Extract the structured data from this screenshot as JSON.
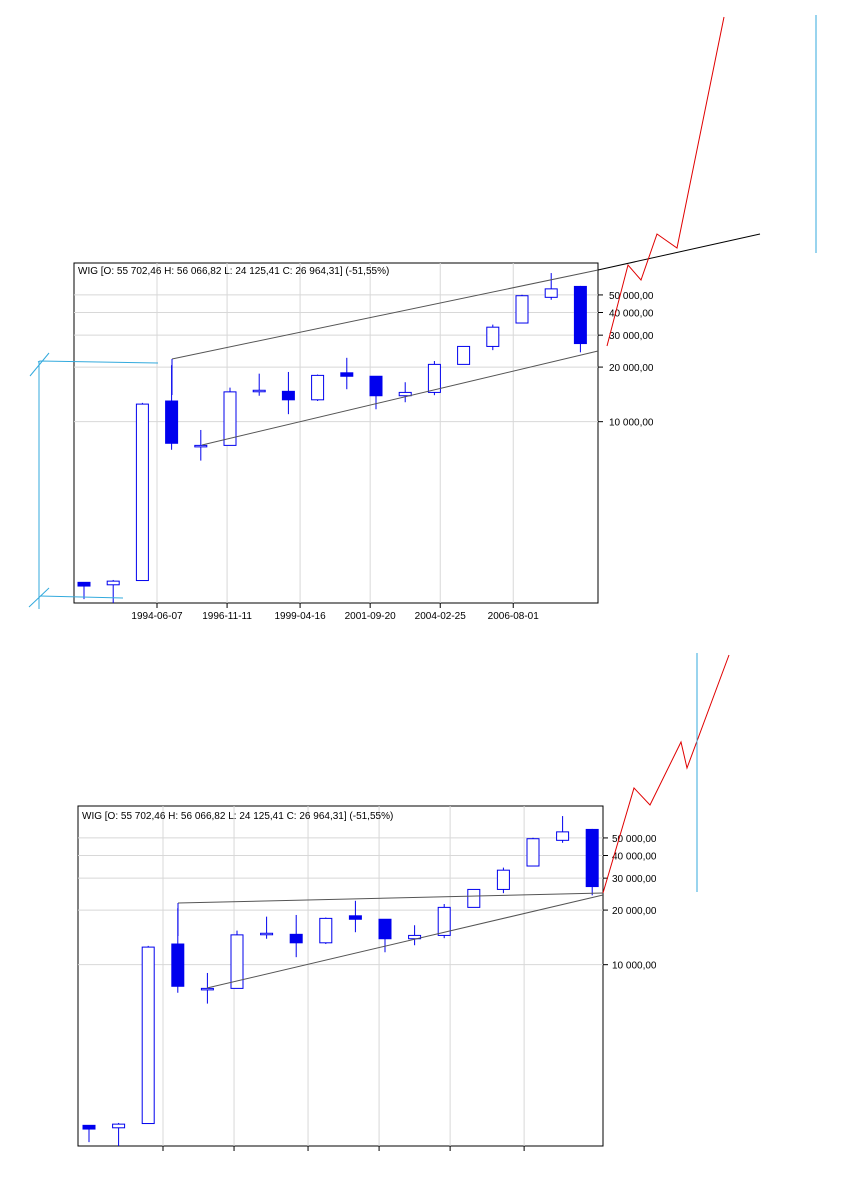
{
  "colors": {
    "candle": "#0000ee",
    "bear_fill": "#0000ee",
    "bull_fill": "#ffffff",
    "grid": "#d8d8d8",
    "frame": "#000000",
    "channel": "#555555",
    "projection": "#e00000",
    "guide": "#33aadd"
  },
  "chart_data": [
    {
      "type": "candlestick",
      "title": "WIG [O: 55 702,46  H: 56 066,82  L: 24 125,41  C: 26 964,31] (-51,55%)",
      "scale": "log",
      "ylim": [
        1000,
        75000
      ],
      "y_ticks": [
        {
          "v": 50000,
          "label": "50 000,00"
        },
        {
          "v": 40000,
          "label": "40 000,00"
        },
        {
          "v": 30000,
          "label": "30 000,00"
        },
        {
          "v": 20000,
          "label": "20 000,00"
        },
        {
          "v": 10000,
          "label": "10 000,00"
        }
      ],
      "x_ticks": [
        {
          "i": 2.5,
          "label": "1994-06-07"
        },
        {
          "i": 4.9,
          "label": "1996-11-11"
        },
        {
          "i": 7.4,
          "label": "1999-04-16"
        },
        {
          "i": 9.8,
          "label": "2001-09-20"
        },
        {
          "i": 12.2,
          "label": "2004-02-25"
        },
        {
          "i": 14.7,
          "label": "2006-08-01"
        }
      ],
      "grid": true,
      "candles": [
        {
          "o": 1300,
          "h": 1300,
          "l": 1050,
          "c": 1240
        },
        {
          "o": 1260,
          "h": 1340,
          "l": 1000,
          "c": 1320
        },
        {
          "o": 1330,
          "h": 12700,
          "l": 1330,
          "c": 12500
        },
        {
          "o": 13000,
          "h": 20500,
          "l": 7000,
          "c": 7600
        },
        {
          "o": 7400,
          "h": 9000,
          "l": 6100,
          "c": 7400
        },
        {
          "o": 7400,
          "h": 15400,
          "l": 7400,
          "c": 14600
        },
        {
          "o": 14700,
          "h": 18400,
          "l": 13900,
          "c": 14900
        },
        {
          "o": 14700,
          "h": 18800,
          "l": 11000,
          "c": 13200
        },
        {
          "o": 13200,
          "h": 18200,
          "l": 13000,
          "c": 18000
        },
        {
          "o": 18600,
          "h": 22500,
          "l": 15100,
          "c": 17800
        },
        {
          "o": 17800,
          "h": 17800,
          "l": 11700,
          "c": 13900
        },
        {
          "o": 13900,
          "h": 16500,
          "l": 12800,
          "c": 14500
        },
        {
          "o": 14500,
          "h": 21600,
          "l": 14000,
          "c": 20700
        },
        {
          "o": 20700,
          "h": 26100,
          "l": 20700,
          "c": 26000
        },
        {
          "o": 26000,
          "h": 34300,
          "l": 24800,
          "c": 33200
        },
        {
          "o": 35000,
          "h": 50100,
          "l": 35000,
          "c": 49500
        },
        {
          "o": 48500,
          "h": 66000,
          "l": 47000,
          "c": 54000
        },
        {
          "o": 55702.46,
          "h": 56066.82,
          "l": 24125.41,
          "c": 26964.31
        }
      ]
    },
    {
      "type": "candlestick",
      "title": "WIG [O: 55 702,46  H: 56 066,82  L: 24 125,41  C: 26 964,31] (-51,55%)",
      "scale": "log",
      "ylim": [
        1000,
        75000
      ],
      "y_ticks": [
        {
          "v": 50000,
          "label": "50 000,00"
        },
        {
          "v": 40000,
          "label": "40 000,00"
        },
        {
          "v": 30000,
          "label": "30 000,00"
        },
        {
          "v": 20000,
          "label": "20 000,00"
        },
        {
          "v": 10000,
          "label": "10 000,00"
        }
      ],
      "x_ticks": [
        {
          "i": 2.5,
          "label": ""
        },
        {
          "i": 4.9,
          "label": ""
        },
        {
          "i": 7.4,
          "label": ""
        },
        {
          "i": 9.8,
          "label": ""
        },
        {
          "i": 12.2,
          "label": ""
        },
        {
          "i": 14.7,
          "label": ""
        }
      ],
      "grid": true,
      "candles": [
        {
          "o": 1300,
          "h": 1300,
          "l": 1050,
          "c": 1240
        },
        {
          "o": 1260,
          "h": 1340,
          "l": 1000,
          "c": 1320
        },
        {
          "o": 1330,
          "h": 12700,
          "l": 1330,
          "c": 12500
        },
        {
          "o": 13000,
          "h": 20500,
          "l": 7000,
          "c": 7600
        },
        {
          "o": 7400,
          "h": 9000,
          "l": 6100,
          "c": 7400
        },
        {
          "o": 7400,
          "h": 15400,
          "l": 7400,
          "c": 14600
        },
        {
          "o": 14700,
          "h": 18400,
          "l": 13900,
          "c": 14900
        },
        {
          "o": 14700,
          "h": 18800,
          "l": 11000,
          "c": 13200
        },
        {
          "o": 13200,
          "h": 18200,
          "l": 13000,
          "c": 18000
        },
        {
          "o": 18600,
          "h": 22500,
          "l": 15100,
          "c": 17800
        },
        {
          "o": 17800,
          "h": 17800,
          "l": 11700,
          "c": 13900
        },
        {
          "o": 13900,
          "h": 16500,
          "l": 12800,
          "c": 14500
        },
        {
          "o": 14500,
          "h": 21600,
          "l": 14000,
          "c": 20700
        },
        {
          "o": 20700,
          "h": 26100,
          "l": 20700,
          "c": 26000
        },
        {
          "o": 26000,
          "h": 34300,
          "l": 24800,
          "c": 33200
        },
        {
          "o": 35000,
          "h": 50100,
          "l": 35000,
          "c": 49500
        },
        {
          "o": 48500,
          "h": 66000,
          "l": 47000,
          "c": 54000
        },
        {
          "o": 55702.46,
          "h": 56066.82,
          "l": 24125.41,
          "c": 26964.31
        }
      ]
    }
  ]
}
